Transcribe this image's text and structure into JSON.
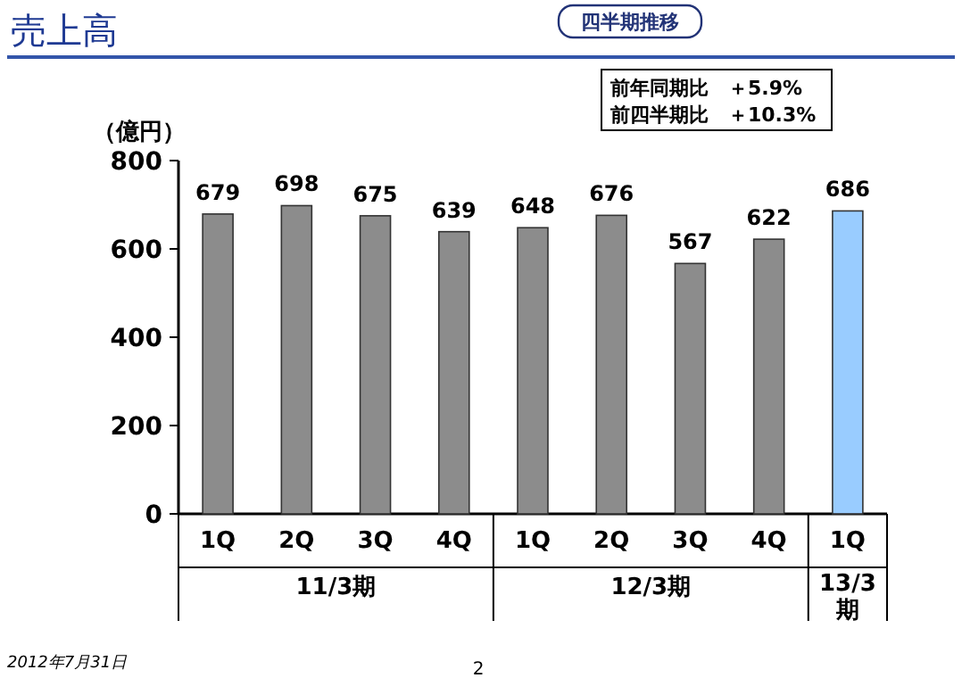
{
  "chart_data": {
    "type": "bar",
    "title": "売上高",
    "subtitle": "四半期推移",
    "ylabel": "（億円）",
    "categories": [
      "1Q",
      "2Q",
      "3Q",
      "4Q",
      "1Q",
      "2Q",
      "3Q",
      "4Q",
      "1Q"
    ],
    "values": [
      679,
      698,
      675,
      639,
      648,
      676,
      567,
      622,
      686
    ],
    "colors": [
      "#8c8c8c",
      "#8c8c8c",
      "#8c8c8c",
      "#8c8c8c",
      "#8c8c8c",
      "#8c8c8c",
      "#8c8c8c",
      "#8c8c8c",
      "#99ccff"
    ],
    "ylim": [
      0,
      800
    ],
    "yticks": [
      0,
      200,
      400,
      600,
      800
    ],
    "data_labels": true,
    "annotations": [
      "11/3期",
      "12/3期",
      "13/3期",
      "前年同期比　＋5.9%",
      "前四半期比　＋10.3%",
      "2012年7月31日",
      "2"
    ]
  }
}
